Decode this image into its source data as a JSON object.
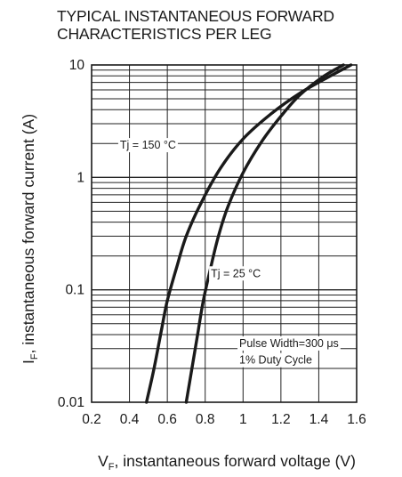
{
  "chart_data": {
    "type": "line",
    "title_lines": [
      "TYPICAL INSTANTANEOUS FORWARD",
      "CHARACTERISTICS PER LEG"
    ],
    "xlabel": {
      "main": "V",
      "sub": "F",
      "rest": ", instantaneous forward voltage (V)"
    },
    "ylabel": {
      "main": "I",
      "sub": "F",
      "rest": ", instantaneous forward current  (A)"
    },
    "xlim": [
      0.2,
      1.6
    ],
    "ylim": [
      0.01,
      10
    ],
    "y_scale": "log",
    "grid": true,
    "x_ticks": [
      {
        "value": 0.2,
        "label": "0.2"
      },
      {
        "value": 0.4,
        "label": "0.4"
      },
      {
        "value": 0.6,
        "label": "0.6"
      },
      {
        "value": 0.8,
        "label": "0.8"
      },
      {
        "value": 1.0,
        "label": "1"
      },
      {
        "value": 1.2,
        "label": "1.2"
      },
      {
        "value": 1.4,
        "label": "1.4"
      },
      {
        "value": 1.6,
        "label": "1.6"
      }
    ],
    "y_ticks": [
      {
        "value": 0.01,
        "label": "0.01"
      },
      {
        "value": 0.1,
        "label": "0.1"
      },
      {
        "value": 1,
        "label": "1"
      },
      {
        "value": 10,
        "label": "10"
      }
    ],
    "series": [
      {
        "name": "Tj = 150 °C",
        "x": [
          0.49,
          0.53,
          0.57,
          0.6,
          0.65,
          0.7,
          0.78,
          0.88,
          1.0,
          1.15,
          1.3,
          1.45,
          1.57
        ],
        "y": [
          0.01,
          0.02,
          0.045,
          0.08,
          0.16,
          0.3,
          0.6,
          1.2,
          2.2,
          3.7,
          5.6,
          7.8,
          10
        ]
      },
      {
        "name": "Tj = 25 °C",
        "x": [
          0.7,
          0.73,
          0.76,
          0.79,
          0.83,
          0.87,
          0.92,
          1.0,
          1.1,
          1.2,
          1.3,
          1.42,
          1.53
        ],
        "y": [
          0.01,
          0.02,
          0.04,
          0.08,
          0.16,
          0.3,
          0.55,
          1.1,
          2.1,
          3.5,
          5.4,
          7.8,
          10
        ]
      }
    ],
    "annotations": [
      {
        "text": "Tj = 150 °C",
        "x": 0.35,
        "y": 1.8
      },
      {
        "text": "Tj = 25 °C",
        "x": 0.83,
        "y": 0.13
      },
      {
        "text": "Pulse Width=300 μs",
        "x": 0.98,
        "y": 0.031
      },
      {
        "text": "1% Duty Cycle",
        "x": 0.98,
        "y": 0.022
      }
    ]
  }
}
